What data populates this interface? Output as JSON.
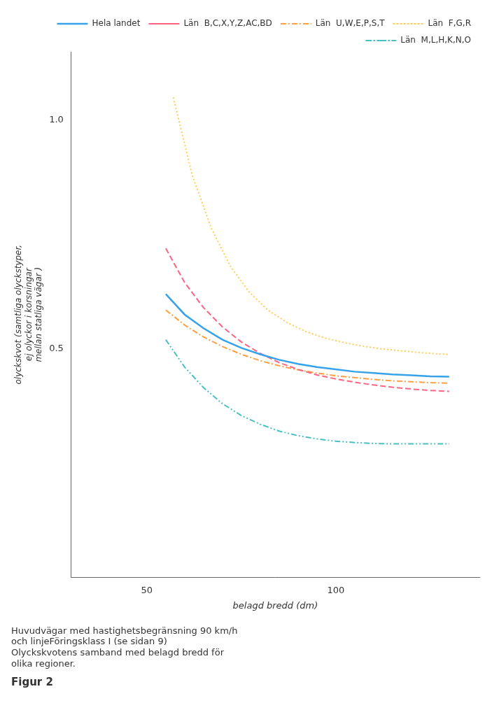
{
  "chart_data": {
    "type": "line",
    "title": "Figur 2",
    "subtitle": "Huvudvägar med hastighetsbegränsning 90 km/h\noch linjeFöringsklass I (se sidan 9)\nOlyckskvotens samband med belagd bredd för\nolika regioner.",
    "xlabel": "belagd bredd (dm)",
    "ylabel": [
      "olyckskvot (samtliga olyckstyper,",
      "ej olyckor i korsningar",
      "mellan statliga vägar )"
    ],
    "xlim": [
      30,
      138
    ],
    "xticks": [
      50,
      100
    ],
    "ylim": [
      0.0,
      1.15
    ],
    "yticks": [
      0.5,
      {
        "value": 1.0,
        "label": "1.0"
      }
    ],
    "grid": false,
    "legend": "upper right",
    "series": [
      {
        "name": "Hela landet",
        "line_style": "solid",
        "x": [
          55,
          60,
          65,
          70,
          75,
          80,
          85,
          90,
          95,
          100,
          105,
          110,
          115,
          120,
          125,
          130
        ],
        "values": [
          0.62,
          0.575,
          0.545,
          0.52,
          0.502,
          0.488,
          0.476,
          0.467,
          0.46,
          0.455,
          0.45,
          0.447,
          0.444,
          0.442,
          0.44,
          0.439
        ]
      },
      {
        "name": "Län  B,C,X,Y,Z,AC,BD",
        "line_style": "dashed",
        "x": [
          55,
          60,
          65,
          70,
          75,
          80,
          85,
          90,
          95,
          100,
          105,
          110,
          115,
          120,
          125,
          130
        ],
        "values": [
          0.72,
          0.645,
          0.59,
          0.548,
          0.515,
          0.49,
          0.47,
          0.455,
          0.443,
          0.434,
          0.427,
          0.421,
          0.416,
          0.412,
          0.409,
          0.407
        ]
      },
      {
        "name": "Län  U,W,E,P,S,T",
        "line_style": "dashdot",
        "x": [
          55,
          60,
          65,
          70,
          75,
          80,
          85,
          90,
          95,
          100,
          105,
          110,
          115,
          120,
          125,
          130
        ],
        "values": [
          0.585,
          0.552,
          0.526,
          0.505,
          0.488,
          0.474,
          0.463,
          0.454,
          0.447,
          0.441,
          0.437,
          0.433,
          0.43,
          0.428,
          0.426,
          0.425
        ]
      },
      {
        "name": "Län  F,G,R",
        "line_style": "dotted",
        "x": [
          57,
          62,
          67,
          72,
          77,
          82,
          87,
          92,
          97,
          102,
          107,
          112,
          117,
          122,
          127,
          130
        ],
        "values": [
          1.05,
          0.88,
          0.765,
          0.682,
          0.625,
          0.585,
          0.558,
          0.538,
          0.524,
          0.514,
          0.506,
          0.5,
          0.496,
          0.492,
          0.489,
          0.488
        ]
      },
      {
        "name": "Län  M,L,H,K,N,O",
        "line_style": "dashdotdot",
        "x": [
          55,
          60,
          65,
          70,
          75,
          80,
          85,
          90,
          95,
          100,
          105,
          110,
          115,
          120,
          125,
          130
        ],
        "values": [
          0.52,
          0.46,
          0.415,
          0.38,
          0.354,
          0.335,
          0.32,
          0.31,
          0.303,
          0.298,
          0.295,
          0.293,
          0.292,
          0.292,
          0.292,
          0.292
        ]
      }
    ]
  }
}
